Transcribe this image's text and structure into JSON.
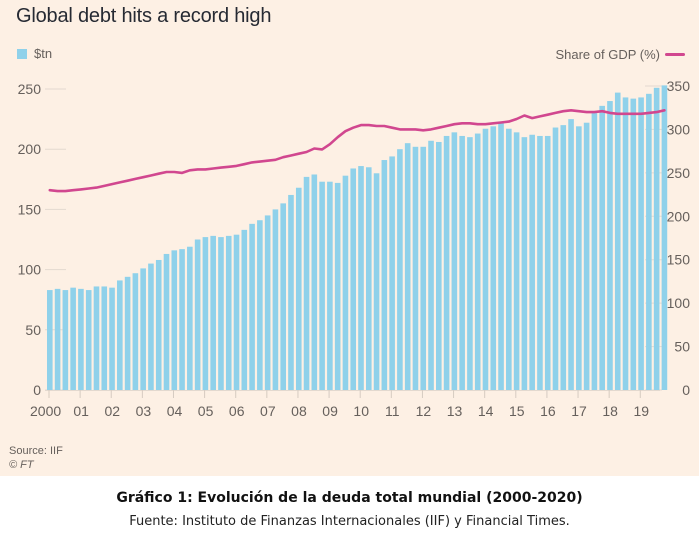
{
  "header": {
    "title": "Global debt hits a record high",
    "legend_left": "$tn",
    "legend_right": "Share of GDP (%)"
  },
  "footer": {
    "source": "Source: IIF",
    "copyright": "© FT"
  },
  "caption": {
    "title": "Gráfico 1: Evolución de la deuda total mundial (2000-2020)",
    "source": "Fuente: Instituto de Finanzas Internacionales (IIF) y Financial Times."
  },
  "colors": {
    "background": "#fdf0e4",
    "bars": "#8fd1ea",
    "line": "#d1478f",
    "text": "#66605c"
  },
  "chart_data": {
    "type": "bar+line",
    "title": "Global debt hits a record high",
    "xlabel": "",
    "x_ticks": [
      "2000",
      "01",
      "02",
      "03",
      "04",
      "05",
      "06",
      "07",
      "08",
      "09",
      "10",
      "11",
      "12",
      "13",
      "14",
      "15",
      "16",
      "17",
      "18",
      "19"
    ],
    "left_axis": {
      "label": "$tn",
      "ticks": [
        0,
        50,
        100,
        150,
        200,
        250
      ],
      "range": [
        0,
        250
      ]
    },
    "right_axis": {
      "label": "Share of GDP (%)",
      "ticks": [
        0,
        50,
        100,
        150,
        200,
        250,
        300,
        350
      ],
      "range": [
        0,
        350
      ]
    },
    "grid": false,
    "legend": [
      "top-left: $tn (bars)",
      "top-right: Share of GDP (%) (line)"
    ],
    "frequency": "quarterly, 2000Q1-2019Q3",
    "series": [
      {
        "name": "$tn",
        "type": "bar",
        "axis": "left",
        "values": [
          83,
          84,
          83,
          85,
          84,
          83,
          86,
          86,
          85,
          91,
          94,
          97,
          101,
          105,
          108,
          113,
          116,
          117,
          119,
          125,
          127,
          128,
          127,
          128,
          129,
          133,
          138,
          141,
          145,
          150,
          155,
          162,
          168,
          177,
          179,
          173,
          173,
          172,
          178,
          184,
          186,
          185,
          180,
          191,
          194,
          200,
          205,
          202,
          202,
          207,
          206,
          211,
          214,
          211,
          210,
          213,
          217,
          219,
          222,
          217,
          214,
          210,
          212,
          211,
          211,
          218,
          220,
          225,
          219,
          222,
          230,
          236,
          240,
          247,
          243,
          242,
          243,
          246,
          251,
          253
        ]
      },
      {
        "name": "Share of GDP (%)",
        "type": "line",
        "axis": "right",
        "values": [
          230,
          229,
          229,
          230,
          231,
          232,
          233,
          235,
          237,
          239,
          241,
          243,
          245,
          247,
          249,
          251,
          251,
          250,
          253,
          254,
          254,
          255,
          256,
          257,
          258,
          260,
          262,
          263,
          264,
          265,
          268,
          270,
          272,
          274,
          278,
          277,
          283,
          291,
          298,
          302,
          305,
          305,
          304,
          304,
          302,
          300,
          300,
          300,
          299,
          300,
          302,
          304,
          306,
          307,
          307,
          306,
          306,
          307,
          308,
          309,
          312,
          316,
          313,
          315,
          317,
          319,
          321,
          322,
          321,
          320,
          320,
          321,
          319,
          318,
          318,
          318,
          318,
          319,
          320,
          322
        ]
      }
    ]
  }
}
